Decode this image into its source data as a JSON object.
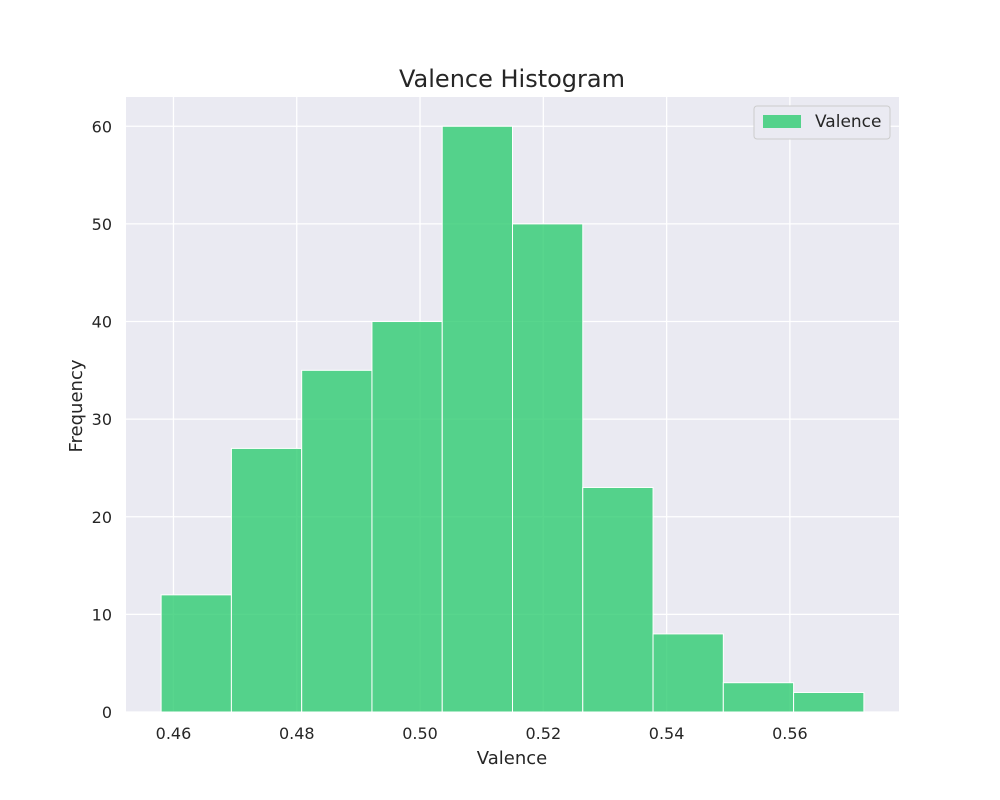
{
  "chart_data": {
    "type": "histogram",
    "title": "Valence Histogram",
    "xlabel": "Valence",
    "ylabel": "Frequency",
    "bin_edges": [
      0.458,
      0.4694,
      0.4808,
      0.4922,
      0.5036,
      0.515,
      0.5264,
      0.5378,
      0.5492,
      0.5606,
      0.572
    ],
    "values": [
      12,
      27,
      35,
      40,
      60,
      50,
      23,
      8,
      3,
      2
    ],
    "xlim": [
      0.4523,
      0.5777
    ],
    "ylim": [
      0,
      63
    ],
    "xticks": [
      0.46,
      0.48,
      0.5,
      0.52,
      0.54,
      0.56
    ],
    "xtick_labels": [
      "0.46",
      "0.48",
      "0.50",
      "0.52",
      "0.54",
      "0.56"
    ],
    "yticks": [
      0,
      10,
      20,
      30,
      40,
      50,
      60
    ],
    "ytick_labels": [
      "0",
      "10",
      "20",
      "30",
      "40",
      "50",
      "60"
    ],
    "series": [
      {
        "name": "Valence",
        "color": "#2ecc71"
      }
    ],
    "bar_opacity": 0.8,
    "grid": true,
    "legend_position": "top-right"
  }
}
